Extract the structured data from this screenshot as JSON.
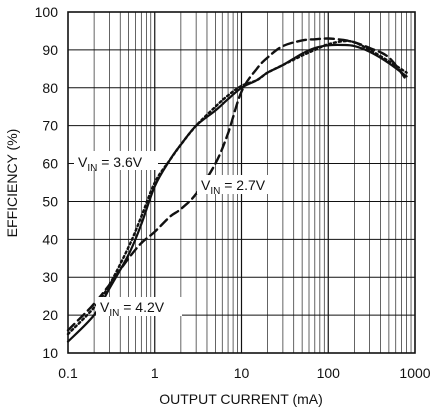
{
  "chart_data": {
    "type": "line",
    "xlabel": "OUTPUT CURRENT (mA)",
    "ylabel": "EFFICIENCY (%)",
    "x_scale": "log",
    "xlim": [
      0.1,
      1000
    ],
    "ylim": [
      10,
      100
    ],
    "grid": true,
    "x_ticks": [
      "0.1",
      "1",
      "10",
      "100",
      "1000"
    ],
    "y_ticks": [
      "10",
      "20",
      "30",
      "40",
      "50",
      "60",
      "70",
      "80",
      "90",
      "100"
    ],
    "series": [
      {
        "name": "VIN = 3.6V",
        "style": "solid",
        "x": [
          0.1,
          0.2,
          0.3,
          0.5,
          0.7,
          1,
          1.5,
          2,
          3,
          5,
          7,
          10,
          15,
          20,
          30,
          50,
          70,
          100,
          150,
          200,
          300,
          500,
          800
        ],
        "y": [
          13,
          20,
          27,
          36,
          44,
          54,
          61,
          65,
          70,
          74,
          77,
          80,
          82,
          84,
          86,
          89,
          90.5,
          91.2,
          91.3,
          91,
          89.5,
          86.5,
          83
        ]
      },
      {
        "name": "VIN = 2.7V",
        "style": "dashed",
        "x": [
          0.1,
          0.15,
          0.2,
          0.3,
          0.5,
          0.7,
          1,
          1.5,
          2,
          3,
          5,
          7,
          10,
          15,
          20,
          30,
          50,
          70,
          100,
          150,
          200,
          300,
          500,
          800
        ],
        "y": [
          16,
          20,
          23,
          28,
          35,
          39,
          42,
          46,
          48,
          52,
          60,
          68,
          79,
          85,
          88,
          91,
          92.5,
          92.8,
          93,
          92.6,
          92,
          90.5,
          88,
          82
        ]
      },
      {
        "name": "VIN = 4.2V",
        "style": "dash-dot",
        "x": [
          0.1,
          0.2,
          0.3,
          0.5,
          0.7,
          1,
          1.5,
          2,
          3,
          5,
          7,
          10,
          15,
          20,
          30,
          50,
          70,
          100,
          150,
          200,
          300,
          500,
          800
        ],
        "y": [
          15,
          22,
          28,
          38,
          46,
          55,
          61,
          65,
          70,
          75,
          78,
          80.5,
          82,
          84,
          86,
          88.5,
          90,
          91.5,
          92.3,
          92,
          90,
          87,
          84
        ]
      }
    ],
    "annotations": [
      {
        "main": "V",
        "sub": "IN",
        "rest": " = 3.6V",
        "series": "VIN = 3.6V"
      },
      {
        "main": "V",
        "sub": "IN",
        "rest": " = 2.7V",
        "series": "VIN = 2.7V"
      },
      {
        "main": "V",
        "sub": "IN",
        "rest": " = 4.2V",
        "series": "VIN = 4.2V"
      }
    ]
  }
}
